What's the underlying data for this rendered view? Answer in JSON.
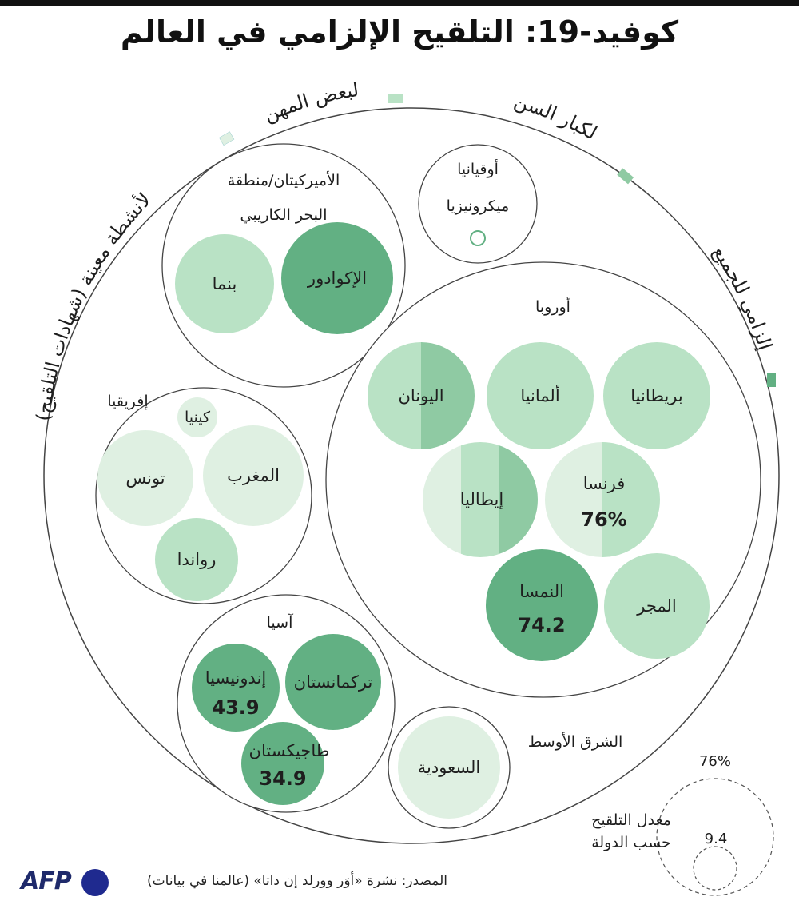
{
  "title": "كوفيد-19: التلقيح الإلزامي في العالم",
  "legend": {
    "for_professions": "لبعض المهن",
    "for_activities": "لأنشطة معينة (شهادات التلقيح)",
    "for_elderly": "لكبار السن",
    "for_all": "إلزامي للجميع",
    "colors": {
      "for_activities": "#dff0e2",
      "for_professions": "#b9e2c5",
      "for_elderly": "#8fcaa3",
      "for_all": "#62b083"
    }
  },
  "regions": {
    "americas": {
      "line1": "الأميركيتان/منطقة",
      "line2": "البحر الكاريبي"
    },
    "oceania": {
      "name": "أوقيانيا"
    },
    "europe": {
      "name": "أوروبا"
    },
    "africa": {
      "name": "إفريقيا"
    },
    "asia": {
      "name": "آسيا"
    },
    "middle_east": {
      "name": "الشرق الأوسط"
    }
  },
  "countries": {
    "panama": "بنما",
    "ecuador": "الإكوادور",
    "micronesia": "ميكرونيزيا",
    "britain": "بريطانيا",
    "germany": "ألمانيا",
    "greece": "اليونان",
    "france": "فرنسا",
    "italy": "إيطاليا",
    "austria": "النمسا",
    "hungary": "المجر",
    "kenya": "كينيا",
    "tunisia": "تونس",
    "morocco": "المغرب",
    "rwanda": "رواندا",
    "turkmenistan": "تركمانستان",
    "indonesia": "إندونيسيا",
    "tajikistan": "طاجيكستان",
    "saudi": "السعودية"
  },
  "values": {
    "france": "76%",
    "austria": "74.2",
    "indonesia": "43.9",
    "tajikistan": "34.9"
  },
  "scale": {
    "max": "76%",
    "min": "9.4",
    "caption_line1": "معدل التلقيح",
    "caption_line2": "حسب الدولة"
  },
  "source": "المصدر: نشرة «أوَر وورلد إن داتا» (عالمنا في بيانات)",
  "logo": "AFP"
}
